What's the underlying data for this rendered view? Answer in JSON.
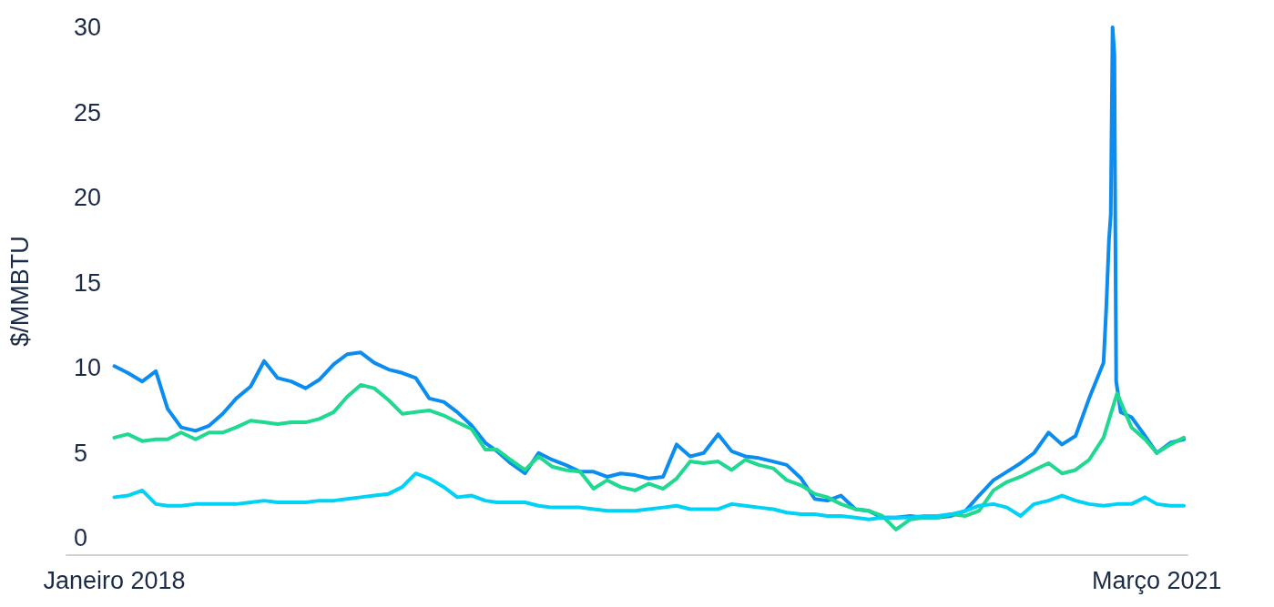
{
  "chart_data": {
    "type": "line",
    "ylabel": "$/MMBTU",
    "xlim": [
      "2017-11-09",
      "2021-04-04"
    ],
    "xticks": [
      {
        "value": "2018-01-01",
        "label": "Janeiro 2018"
      },
      {
        "value": "2021-03-01",
        "label": "Março 2021"
      }
    ],
    "ylim": [
      -1,
      30
    ],
    "yticks": [
      0,
      5,
      10,
      15,
      20,
      25,
      30
    ],
    "grid": false,
    "legend": false,
    "marker": "none",
    "line_style": "solid",
    "x": [
      "2018-01-01",
      "2018-01-16",
      "2018-02-01",
      "2018-02-16",
      "2018-03-01",
      "2018-03-16",
      "2018-04-01",
      "2018-04-16",
      "2018-05-01",
      "2018-05-16",
      "2018-06-01",
      "2018-06-16",
      "2018-07-01",
      "2018-07-16",
      "2018-08-01",
      "2018-08-16",
      "2018-09-01",
      "2018-09-16",
      "2018-10-01",
      "2018-10-16",
      "2018-11-01",
      "2018-11-16",
      "2018-12-01",
      "2018-12-16",
      "2019-01-01",
      "2019-01-16",
      "2019-02-01",
      "2019-02-16",
      "2019-03-01",
      "2019-03-16",
      "2019-04-01",
      "2019-04-16",
      "2019-05-01",
      "2019-05-16",
      "2019-06-01",
      "2019-06-16",
      "2019-07-01",
      "2019-07-16",
      "2019-08-01",
      "2019-08-16",
      "2019-09-01",
      "2019-09-16",
      "2019-10-01",
      "2019-10-16",
      "2019-11-01",
      "2019-11-16",
      "2019-12-01",
      "2019-12-16",
      "2020-01-01",
      "2020-01-16",
      "2020-02-01",
      "2020-02-16",
      "2020-03-01",
      "2020-03-16",
      "2020-04-01",
      "2020-04-16",
      "2020-05-01",
      "2020-05-16",
      "2020-06-01",
      "2020-06-16",
      "2020-07-01",
      "2020-07-16",
      "2020-08-01",
      "2020-08-16",
      "2020-09-01",
      "2020-09-16",
      "2020-10-01",
      "2020-10-16",
      "2020-11-01",
      "2020-11-16",
      "2020-12-01",
      "2020-12-16",
      "2021-01-01",
      "2021-01-16",
      "2021-02-01",
      "2021-02-16",
      "2021-03-01",
      "2021-03-16",
      "2021-03-31"
    ],
    "series": [
      {
        "color": "#0a8cf0",
        "x": [
          "2018-01-01",
          "2018-01-16",
          "2018-02-01",
          "2018-02-16",
          "2018-03-01",
          "2018-03-16",
          "2018-04-01",
          "2018-04-16",
          "2018-05-01",
          "2018-05-16",
          "2018-06-01",
          "2018-06-16",
          "2018-07-01",
          "2018-07-16",
          "2018-08-01",
          "2018-08-16",
          "2018-09-01",
          "2018-09-16",
          "2018-10-01",
          "2018-10-16",
          "2018-11-01",
          "2018-11-16",
          "2018-12-01",
          "2018-12-16",
          "2019-01-01",
          "2019-01-16",
          "2019-02-01",
          "2019-02-16",
          "2019-03-01",
          "2019-03-16",
          "2019-04-01",
          "2019-04-16",
          "2019-05-01",
          "2019-05-16",
          "2019-06-01",
          "2019-06-16",
          "2019-07-01",
          "2019-07-16",
          "2019-08-01",
          "2019-08-16",
          "2019-09-01",
          "2019-09-16",
          "2019-10-01",
          "2019-10-16",
          "2019-11-01",
          "2019-11-16",
          "2019-12-01",
          "2019-12-16",
          "2020-01-01",
          "2020-01-16",
          "2020-02-01",
          "2020-02-16",
          "2020-03-01",
          "2020-03-16",
          "2020-04-01",
          "2020-04-16",
          "2020-05-01",
          "2020-05-16",
          "2020-06-01",
          "2020-06-16",
          "2020-07-01",
          "2020-07-16",
          "2020-08-01",
          "2020-08-16",
          "2020-09-01",
          "2020-09-16",
          "2020-10-01",
          "2020-10-16",
          "2020-11-01",
          "2020-11-16",
          "2020-12-01",
          "2020-12-16",
          "2021-01-01",
          "2021-01-04",
          "2021-01-07",
          "2021-01-09",
          "2021-01-11",
          "2021-01-13",
          "2021-01-15",
          "2021-01-20",
          "2021-02-01",
          "2021-02-16",
          "2021-03-01",
          "2021-03-16",
          "2021-03-31"
        ],
        "values": [
          10.1,
          9.7,
          9.2,
          9.8,
          7.6,
          6.5,
          6.3,
          6.6,
          7.3,
          8.2,
          8.9,
          10.4,
          9.4,
          9.2,
          8.8,
          9.3,
          10.2,
          10.8,
          10.9,
          10.3,
          9.9,
          9.7,
          9.4,
          8.2,
          8.0,
          7.4,
          6.6,
          5.6,
          5.1,
          4.4,
          3.8,
          5.0,
          4.6,
          4.3,
          3.9,
          3.9,
          3.6,
          3.8,
          3.7,
          3.5,
          3.6,
          5.5,
          4.8,
          5.0,
          6.1,
          5.1,
          4.8,
          4.7,
          4.5,
          4.3,
          3.5,
          2.3,
          2.2,
          2.5,
          1.7,
          1.6,
          1.2,
          1.2,
          1.3,
          1.2,
          1.2,
          1.3,
          1.6,
          2.5,
          3.4,
          3.9,
          4.4,
          5.0,
          6.2,
          5.5,
          6.0,
          8.2,
          10.3,
          13.5,
          17.5,
          19.0,
          30,
          28.4,
          9.2,
          7.4,
          7.1,
          6.0,
          5.0,
          5.6,
          5.8
        ]
      },
      {
        "color": "#1ed98f",
        "values": [
          5.9,
          6.1,
          5.7,
          5.8,
          5.8,
          6.2,
          5.8,
          6.2,
          6.2,
          6.5,
          6.9,
          6.8,
          6.7,
          6.8,
          6.8,
          7.0,
          7.4,
          8.3,
          9.0,
          8.8,
          8.1,
          7.3,
          7.4,
          7.5,
          7.2,
          6.8,
          6.4,
          5.2,
          5.2,
          4.6,
          4.0,
          4.8,
          4.2,
          4.0,
          3.9,
          2.9,
          3.4,
          3.0,
          2.8,
          3.2,
          2.9,
          3.5,
          4.5,
          4.4,
          4.5,
          4.0,
          4.6,
          4.3,
          4.1,
          3.4,
          3.1,
          2.6,
          2.4,
          2.0,
          1.7,
          1.6,
          1.3,
          0.5,
          1.1,
          1.2,
          1.2,
          1.4,
          1.3,
          1.6,
          2.8,
          3.3,
          3.6,
          4.0,
          4.4,
          3.8,
          4.0,
          4.6,
          5.9,
          8.5,
          6.5,
          5.8,
          5.0,
          5.5,
          5.9
        ]
      },
      {
        "color": "#00d2f5",
        "values": [
          2.4,
          2.5,
          2.8,
          2.0,
          1.9,
          1.9,
          2.0,
          2.0,
          2.0,
          2.0,
          2.1,
          2.2,
          2.1,
          2.1,
          2.1,
          2.2,
          2.2,
          2.3,
          2.4,
          2.5,
          2.6,
          3.0,
          3.8,
          3.5,
          3.0,
          2.4,
          2.5,
          2.2,
          2.1,
          2.1,
          2.1,
          1.9,
          1.8,
          1.8,
          1.8,
          1.7,
          1.6,
          1.6,
          1.6,
          1.7,
          1.8,
          1.9,
          1.7,
          1.7,
          1.7,
          2.0,
          1.9,
          1.8,
          1.7,
          1.5,
          1.4,
          1.4,
          1.3,
          1.3,
          1.2,
          1.1,
          1.2,
          1.2,
          1.2,
          1.3,
          1.3,
          1.4,
          1.6,
          1.9,
          2.0,
          1.8,
          1.3,
          2.0,
          2.2,
          2.5,
          2.2,
          2.0,
          1.9,
          2.0,
          2.0,
          2.4,
          2.0,
          1.9,
          1.9
        ]
      }
    ]
  }
}
